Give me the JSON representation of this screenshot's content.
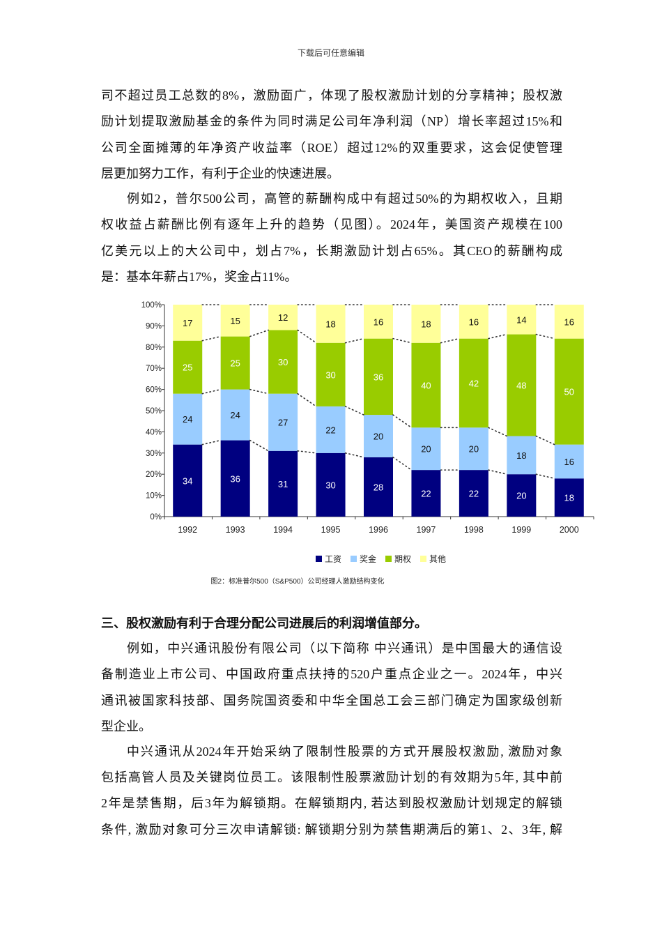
{
  "header": "下载后可任意编辑",
  "paragraph1": [
    "司不超过员工总数的8%，激励面广，体现了股权激励计划的分享精神；股权激",
    "励计划提取激励基金的条件为同时满足公司年净利润（NP）增长率超过15%和",
    "公司全面摊薄的年净资产收益率（ROE）超过12%的双重要求，这会促使管理",
    "层更加努力工作，有利于企业的快速进展。"
  ],
  "paragraph2": [
    "例如2，普尔500公司，高管的薪酬构成中有超过50%的为期权收入，且期",
    "权收益占薪酬比例有逐年上升的趋势（见图）。2024年，美国资产规模在100",
    "亿美元以上的大公司中，划占7%，长期激励计划占65%。其CEO的薪酬构成",
    "是：基本年薪占17%，奖金占11%。"
  ],
  "chart_data": {
    "type": "bar",
    "stacked": true,
    "percent_stacked": true,
    "categories": [
      "1992",
      "1993",
      "1994",
      "1995",
      "1996",
      "1997",
      "1998",
      "1999",
      "2000"
    ],
    "series": [
      {
        "name": "工资",
        "color": "#000080",
        "values": [
          34,
          36,
          31,
          30,
          28,
          22,
          22,
          20,
          18
        ]
      },
      {
        "name": "奖金",
        "color": "#99ccff",
        "values": [
          24,
          24,
          27,
          22,
          20,
          20,
          20,
          18,
          16
        ]
      },
      {
        "name": "期权",
        "color": "#99cc00",
        "values": [
          25,
          25,
          30,
          30,
          36,
          40,
          42,
          48,
          50
        ]
      },
      {
        "name": "其他",
        "color": "#ffff99",
        "values": [
          17,
          15,
          12,
          18,
          16,
          18,
          16,
          14,
          16
        ]
      }
    ],
    "yticks": [
      "0%",
      "10%",
      "20%",
      "30%",
      "40%",
      "50%",
      "60%",
      "70%",
      "80%",
      "90%",
      "100%"
    ],
    "ylim": [
      0,
      100
    ],
    "grid": false,
    "legend_position": "bottom",
    "connector_lines": "dotted",
    "caption": "图2：标准普尔500（S&P500）公司经理人激励结构变化"
  },
  "section3_title": "三、股权激励有利于合理分配公司进展后的利润增值部分。",
  "paragraph3": [
    "例如，中兴通讯股份有限公司（以下简称 中兴通讯）是中国最大的通信设",
    "备制造业上市公司、中国政府重点扶持的520户重点企业之一。2024年，中兴",
    "通讯被国家科技部、国务院国资委和中华全国总工会三部门确定为国家级创新",
    "型企业。"
  ],
  "paragraph4": [
    "中兴通讯从2024年开始采纳了限制性股票的方式开展股权激励, 激励对象",
    "包括高管人员及关键岗位员工。该限制性股票激励计划的有效期为5年, 其中前",
    "2年是禁售期，后3年为解锁期。在解锁期内, 若达到股权激励计划规定的解锁",
    "条件, 激励对象可分三次申请解锁: 解锁期分别为禁售期满后的第1、2、3年, 解"
  ]
}
